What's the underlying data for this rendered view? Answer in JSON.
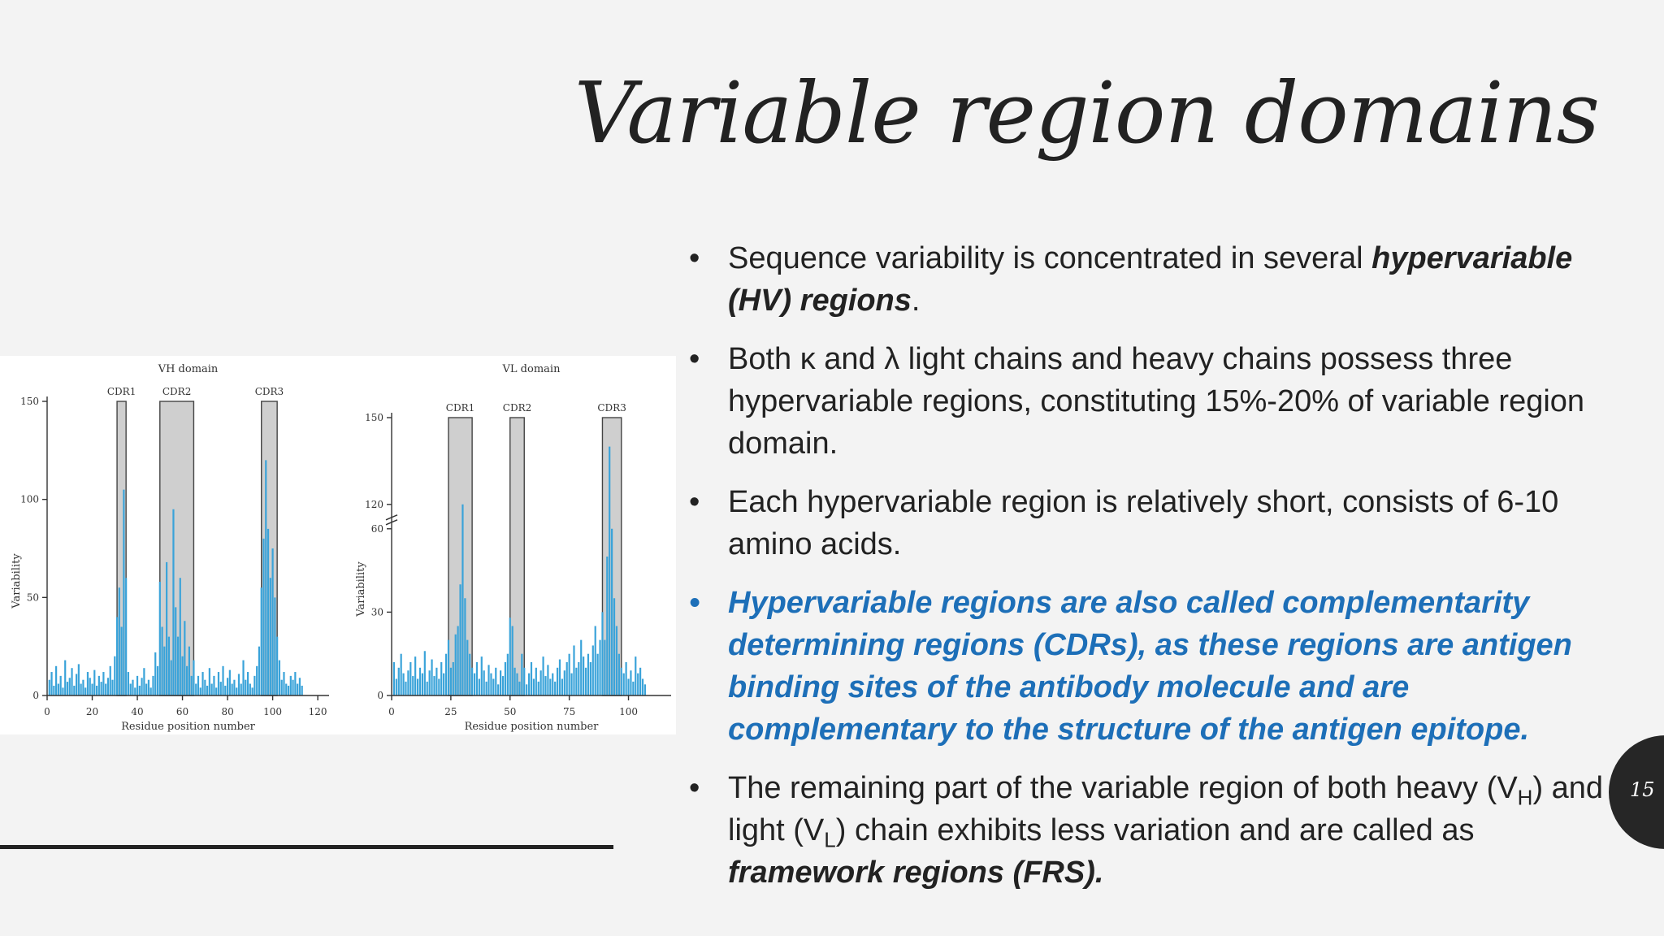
{
  "slide": {
    "title": "Variable region domains",
    "page_number": "15"
  },
  "bullets": [
    {
      "text": "Sequence variability is concentrated in several ",
      "em": "hypervariable (HV) regions",
      "tail": "."
    },
    {
      "text": "Both κ and λ light chains and heavy chains possess three hypervariable regions, constituting 15%-20% of variable region domain."
    },
    {
      "text": " Each hypervariable region is relatively short, consists of 6-10 amino acids."
    },
    {
      "text": "Hypervariable regions are also called complementarity determining regions (CDRs), as these regions are antigen binding sites of the antibody molecule and are complementary to the structure of the antigen epitope."
    },
    {
      "p1": "The remaining part of the variable region of both heavy (V",
      "s1": "H",
      "p2": ") and light (V",
      "s2": "L",
      "p3": ") chain exhibits less variation and are called as ",
      "em": "framework regions (FRS)."
    }
  ],
  "colors": {
    "highlight_bullet": "#1d6fb8",
    "spikes": "#3aa3d9",
    "cdr_fill": "#cfcfcf"
  },
  "chart_data": [
    {
      "type": "bar",
      "title": "VH domain",
      "xlabel": "Residue position number",
      "ylabel": "Variability",
      "xlim": [
        0,
        125
      ],
      "ylim": [
        0,
        150
      ],
      "xticks": [
        "0",
        "20",
        "40",
        "60",
        "80",
        "100",
        "120"
      ],
      "yticks": [
        "0",
        "50",
        "100",
        "150"
      ],
      "regions": [
        {
          "label": "CDR1",
          "start": 31,
          "end": 35
        },
        {
          "label": "CDR2",
          "start": 50,
          "end": 65
        },
        {
          "label": "CDR3",
          "start": 95,
          "end": 102
        }
      ],
      "x": [
        1,
        2,
        3,
        4,
        5,
        6,
        7,
        8,
        9,
        10,
        11,
        12,
        13,
        14,
        15,
        16,
        17,
        18,
        19,
        20,
        21,
        22,
        23,
        24,
        25,
        26,
        27,
        28,
        29,
        30,
        31,
        32,
        33,
        34,
        35,
        36,
        37,
        38,
        39,
        40,
        41,
        42,
        43,
        44,
        45,
        46,
        47,
        48,
        49,
        50,
        51,
        52,
        53,
        54,
        55,
        56,
        57,
        58,
        59,
        60,
        61,
        62,
        63,
        64,
        65,
        66,
        67,
        68,
        69,
        70,
        71,
        72,
        73,
        74,
        75,
        76,
        77,
        78,
        79,
        80,
        81,
        82,
        83,
        84,
        85,
        86,
        87,
        88,
        89,
        90,
        91,
        92,
        93,
        94,
        95,
        96,
        97,
        98,
        99,
        100,
        101,
        102,
        103,
        104,
        105,
        106,
        107,
        108,
        109,
        110,
        111,
        112,
        113
      ],
      "values": [
        8,
        12,
        5,
        15,
        6,
        10,
        4,
        18,
        7,
        9,
        14,
        5,
        11,
        16,
        6,
        8,
        4,
        12,
        9,
        6,
        13,
        5,
        10,
        7,
        12,
        6,
        9,
        15,
        8,
        20,
        40,
        55,
        35,
        105,
        60,
        12,
        6,
        8,
        4,
        10,
        5,
        9,
        14,
        6,
        8,
        4,
        10,
        22,
        15,
        58,
        35,
        25,
        68,
        30,
        18,
        95,
        45,
        30,
        60,
        20,
        38,
        15,
        25,
        10,
        18,
        6,
        10,
        4,
        12,
        8,
        5,
        14,
        6,
        10,
        4,
        12,
        7,
        15,
        5,
        9,
        13,
        6,
        8,
        4,
        11,
        6,
        18,
        8,
        12,
        6,
        4,
        10,
        15,
        25,
        55,
        80,
        120,
        85,
        60,
        75,
        50,
        30,
        18,
        8,
        12,
        6,
        5,
        10,
        8,
        12,
        6,
        9,
        5
      ]
    },
    {
      "type": "bar",
      "title": "VL domain",
      "xlabel": "Residue position number",
      "ylabel": "Variability",
      "xlim": [
        0,
        118
      ],
      "ylim": [
        0,
        150
      ],
      "xticks": [
        "0",
        "25",
        "50",
        "75",
        "100"
      ],
      "yticks": [
        "0",
        "30",
        "60",
        "120",
        "150"
      ],
      "axis_break": "60-120",
      "regions": [
        {
          "label": "CDR1",
          "start": 24,
          "end": 34
        },
        {
          "label": "CDR2",
          "start": 50,
          "end": 56
        },
        {
          "label": "CDR3",
          "start": 89,
          "end": 97
        }
      ],
      "x": [
        1,
        2,
        3,
        4,
        5,
        6,
        7,
        8,
        9,
        10,
        11,
        12,
        13,
        14,
        15,
        16,
        17,
        18,
        19,
        20,
        21,
        22,
        23,
        24,
        25,
        26,
        27,
        28,
        29,
        30,
        31,
        32,
        33,
        34,
        35,
        36,
        37,
        38,
        39,
        40,
        41,
        42,
        43,
        44,
        45,
        46,
        47,
        48,
        49,
        50,
        51,
        52,
        53,
        54,
        55,
        56,
        57,
        58,
        59,
        60,
        61,
        62,
        63,
        64,
        65,
        66,
        67,
        68,
        69,
        70,
        71,
        72,
        73,
        74,
        75,
        76,
        77,
        78,
        79,
        80,
        81,
        82,
        83,
        84,
        85,
        86,
        87,
        88,
        89,
        90,
        91,
        92,
        93,
        94,
        95,
        96,
        97,
        98,
        99,
        100,
        101,
        102,
        103,
        104,
        105,
        106,
        107
      ],
      "values": [
        12,
        6,
        10,
        15,
        8,
        5,
        9,
        12,
        7,
        14,
        6,
        10,
        8,
        16,
        5,
        9,
        13,
        7,
        10,
        6,
        12,
        8,
        15,
        20,
        10,
        12,
        22,
        25,
        40,
        110,
        35,
        20,
        15,
        10,
        8,
        12,
        6,
        14,
        9,
        5,
        11,
        8,
        6,
        10,
        4,
        9,
        7,
        12,
        15,
        28,
        25,
        10,
        8,
        5,
        15,
        10,
        4,
        8,
        12,
        6,
        10,
        5,
        9,
        14,
        7,
        11,
        6,
        8,
        5,
        10,
        13,
        6,
        9,
        12,
        15,
        8,
        18,
        10,
        12,
        20,
        14,
        10,
        15,
        12,
        18,
        25,
        15,
        20,
        30,
        20,
        50,
        140,
        60,
        35,
        25,
        15,
        10,
        8,
        12,
        6,
        9,
        5,
        14,
        8,
        10,
        6,
        4
      ]
    }
  ]
}
